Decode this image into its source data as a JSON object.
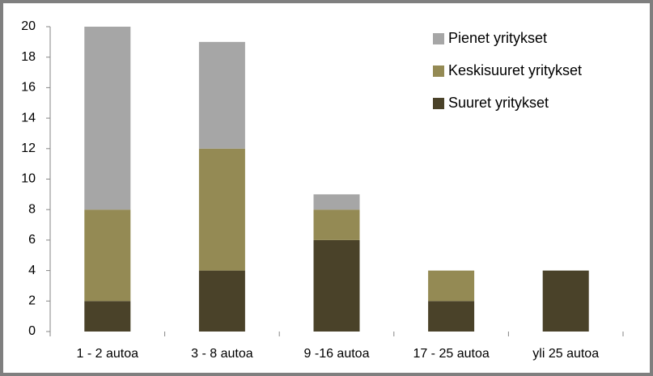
{
  "chart_data": {
    "type": "stacked-bar",
    "categories": [
      "1 - 2 autoa",
      "3 - 8 autoa",
      "9 -16 autoa",
      "17 - 25 autoa",
      "yli 25 autoa"
    ],
    "series": [
      {
        "name": "Suuret yritykset",
        "color": "#4a4229",
        "values": [
          2,
          4,
          6,
          2,
          4
        ]
      },
      {
        "name": "Keskisuuret yritykset",
        "color": "#948a54",
        "values": [
          6,
          8,
          2,
          2,
          0
        ]
      },
      {
        "name": "Pienet yritykset",
        "color": "#a6a6a6",
        "values": [
          12,
          7,
          1,
          0,
          0
        ]
      }
    ],
    "ylim": [
      0,
      20
    ],
    "yticks": [
      0,
      2,
      4,
      6,
      8,
      10,
      12,
      14,
      16,
      18,
      20
    ],
    "grid": true
  }
}
